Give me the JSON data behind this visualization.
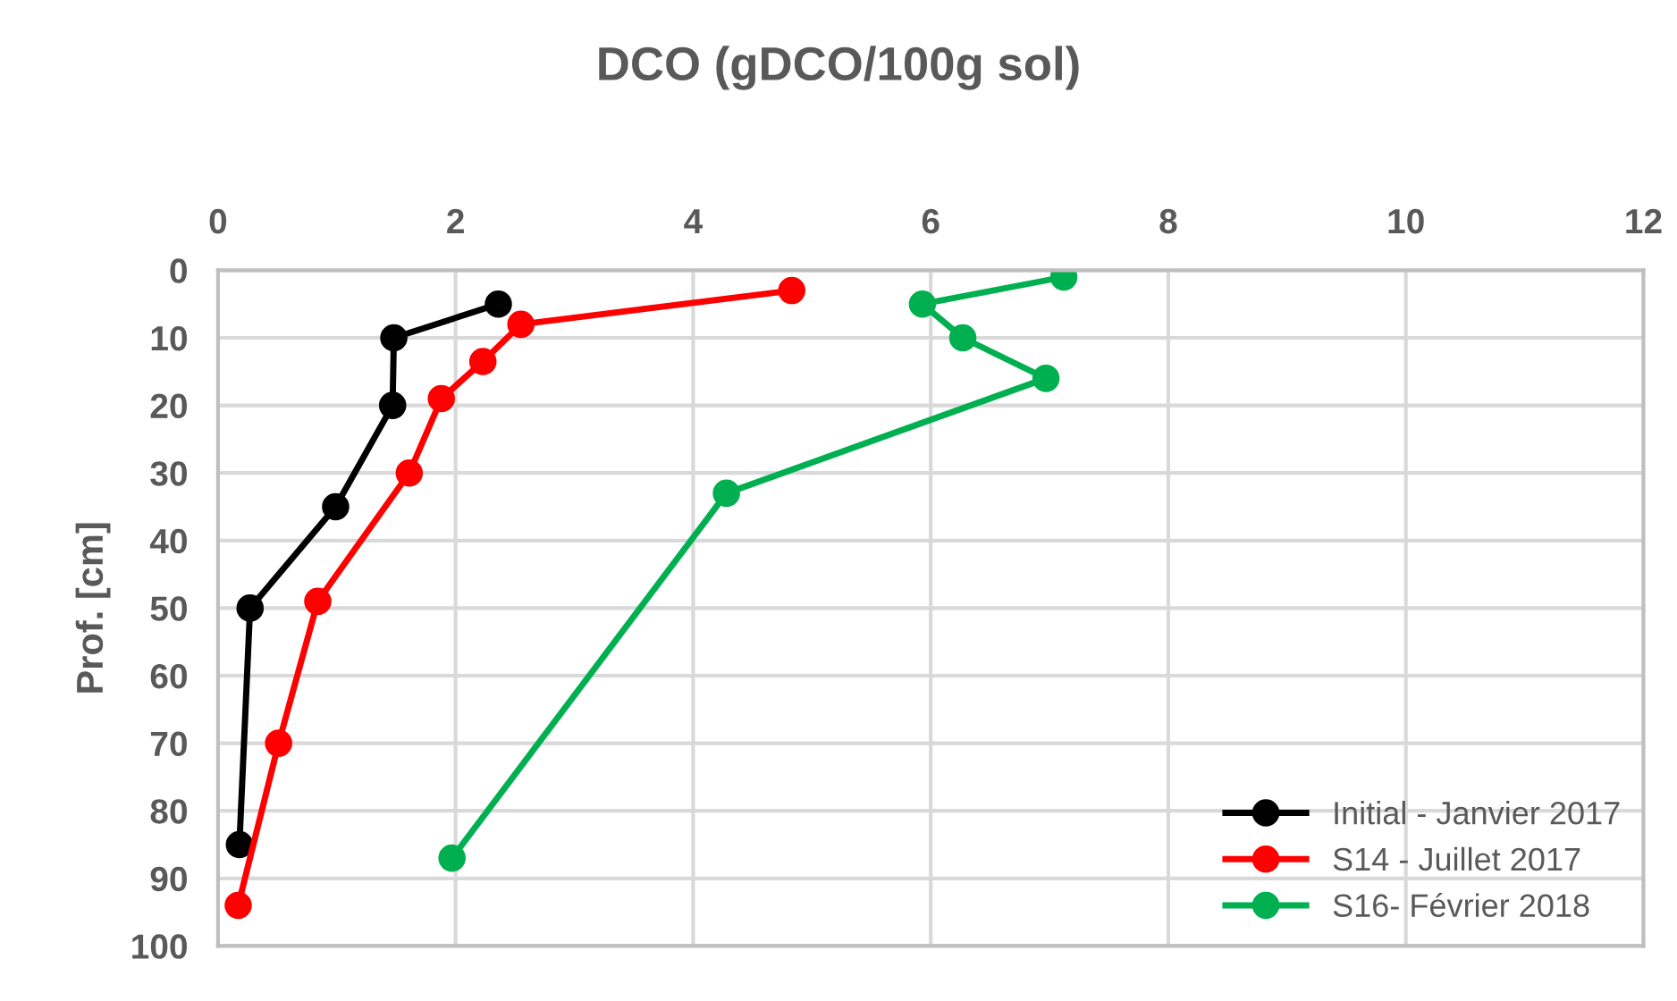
{
  "chart_data": {
    "type": "line",
    "title": "DCO (gDCO/100g sol)",
    "ylabel": "Prof. [cm]",
    "xlim": [
      0,
      12
    ],
    "xticks": [
      0,
      2,
      4,
      6,
      8,
      10,
      12
    ],
    "ylim": [
      100,
      0
    ],
    "yticks": [
      0,
      10,
      20,
      30,
      40,
      50,
      60,
      70,
      80,
      90,
      100
    ],
    "grid": true,
    "legend": "bottom right",
    "marker": "circle",
    "line_style": "solid",
    "series": [
      {
        "name": "Initial - Janvier 2017",
        "color": "#000000",
        "x": [
          2.36,
          1.48,
          1.47,
          0.99,
          0.27,
          0.18
        ],
        "values": [
          5,
          10,
          20,
          35,
          50,
          85
        ]
      },
      {
        "name": "S14 - Juillet 2017",
        "color": "#ff0000",
        "x": [
          4.83,
          2.55,
          2.23,
          1.88,
          1.61,
          0.84,
          0.51,
          0.17
        ],
        "values": [
          3,
          8,
          13.5,
          19,
          30,
          49,
          70,
          94
        ]
      },
      {
        "name": "S16- Février 2018",
        "color": "#00b050",
        "x": [
          7.12,
          5.93,
          6.27,
          6.97,
          4.28,
          1.97
        ],
        "values": [
          1,
          5,
          10,
          16,
          33,
          87
        ]
      }
    ]
  }
}
